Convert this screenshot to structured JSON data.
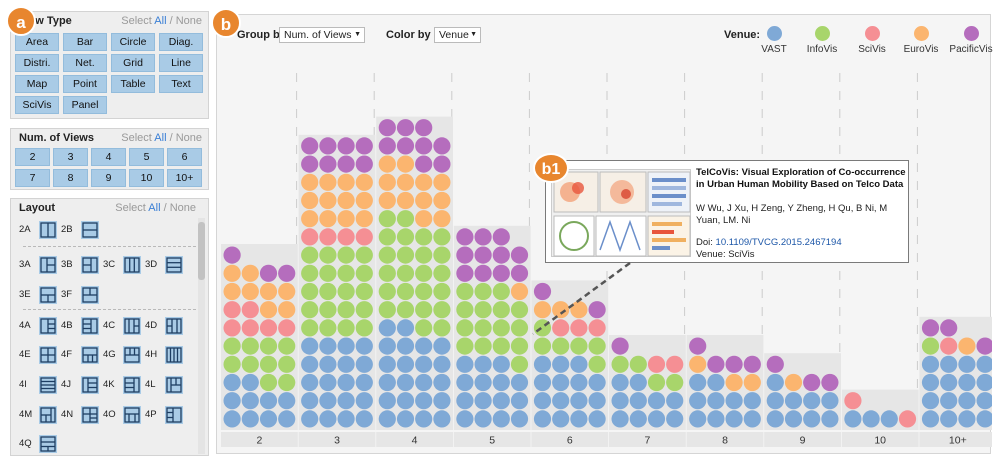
{
  "sidebar": {
    "select_all": "All",
    "select_none": "None",
    "select_word": "Select",
    "view_type": {
      "title": "View Type",
      "buttons": [
        "Area",
        "Bar",
        "Circle",
        "Diag.",
        "Distri.",
        "Net.",
        "Grid",
        "Line",
        "Map",
        "Point",
        "Table",
        "Text",
        "SciVis",
        "Panel"
      ]
    },
    "num_views": {
      "title": "Num. of Views",
      "buttons": [
        "2",
        "3",
        "4",
        "5",
        "6",
        "7",
        "8",
        "9",
        "10",
        "10+"
      ]
    },
    "layout": {
      "title": "Layout",
      "items": [
        "2A",
        "2B",
        "3A",
        "3B",
        "3C",
        "3D",
        "3E",
        "3F",
        "4A",
        "4B",
        "4C",
        "4D",
        "4E",
        "4F",
        "4G",
        "4H",
        "4I",
        "4J",
        "4K",
        "4L",
        "4M",
        "4N",
        "4O",
        "4P",
        "4Q"
      ]
    }
  },
  "toolbar": {
    "group_by_label": "Group by",
    "group_by_value": "Num. of Views",
    "color_by_label": "Color by",
    "color_by_value": "Venue"
  },
  "legend": {
    "title": "Venue:",
    "items": [
      {
        "name": "VAST",
        "color": "#7fa9d6"
      },
      {
        "name": "InfoVis",
        "color": "#a8d56b"
      },
      {
        "name": "SciVis",
        "color": "#f58f94"
      },
      {
        "name": "EuroVis",
        "color": "#fbb56f"
      },
      {
        "name": "PacificVis",
        "color": "#b56dbd"
      }
    ]
  },
  "chart_data": {
    "type": "bar",
    "encoding": "unit dot grid; each dot is one paper, colored by venue",
    "categories": [
      "2",
      "3",
      "4",
      "5",
      "6",
      "7",
      "8",
      "9",
      "10",
      "10+"
    ],
    "series": [
      {
        "name": "VAST",
        "values": [
          10,
          20,
          22,
          15,
          15,
          10,
          10,
          9,
          3,
          16
        ]
      },
      {
        "name": "InfoVis",
        "values": [
          10,
          20,
          24,
          16,
          6,
          4,
          0,
          0,
          0,
          1
        ]
      },
      {
        "name": "SciVis",
        "values": [
          6,
          4,
          0,
          0,
          3,
          2,
          0,
          0,
          2,
          1
        ]
      },
      {
        "name": "EuroVis",
        "values": [
          8,
          12,
          12,
          1,
          3,
          0,
          3,
          1,
          0,
          1
        ]
      },
      {
        "name": "PacificVis",
        "values": [
          3,
          8,
          9,
          11,
          2,
          1,
          4,
          3,
          0,
          3
        ]
      }
    ]
  },
  "tooltip": {
    "title": "TelCoVis: Visual Exploration of Co-occurrence in Urban Human Mobility Based on Telco Data",
    "authors": "W Wu, J Xu, H Zeng, Y Zheng, H Qu, B Ni, M Yuan, LM. Ni",
    "doi_label": "Doi:",
    "doi": "10.1109/TVCG.2015.2467194",
    "venue": "Venue: SciVis"
  },
  "badges": {
    "a": "a",
    "b": "b",
    "b1": "b1"
  }
}
